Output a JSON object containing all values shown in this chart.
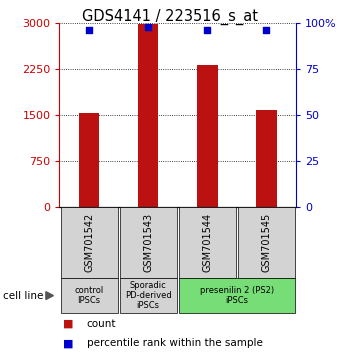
{
  "title": "GDS4141 / 223516_s_at",
  "samples": [
    "GSM701542",
    "GSM701543",
    "GSM701544",
    "GSM701545"
  ],
  "counts": [
    1540,
    2990,
    2310,
    1590
  ],
  "percentiles": [
    96,
    98,
    96,
    96
  ],
  "ylim_left": [
    0,
    3000
  ],
  "ylim_right": [
    0,
    100
  ],
  "yticks_left": [
    0,
    750,
    1500,
    2250,
    3000
  ],
  "yticks_right": [
    0,
    25,
    50,
    75,
    100
  ],
  "left_axis_color": "#cc0000",
  "right_axis_color": "#0000cc",
  "bar_color": "#bb1111",
  "dot_color": "#0000cc",
  "grid_color": "#000000",
  "groups": [
    {
      "label": "control\nIPSCs",
      "start": 0,
      "end": 1,
      "color": "#d3d3d3"
    },
    {
      "label": "Sporadic\nPD-derived\niPSCs",
      "start": 1,
      "end": 2,
      "color": "#d3d3d3"
    },
    {
      "label": "presenilin 2 (PS2)\niPSCs",
      "start": 2,
      "end": 4,
      "color": "#77dd77"
    }
  ],
  "cell_line_label": "cell line",
  "legend_count_label": "count",
  "legend_percentile_label": "percentile rank within the sample",
  "bar_width": 0.35,
  "dot_size": 25,
  "title_fontsize": 10.5,
  "tick_fontsize": 8,
  "sample_fontsize": 7,
  "group_fontsize": 6,
  "legend_fontsize": 7.5
}
